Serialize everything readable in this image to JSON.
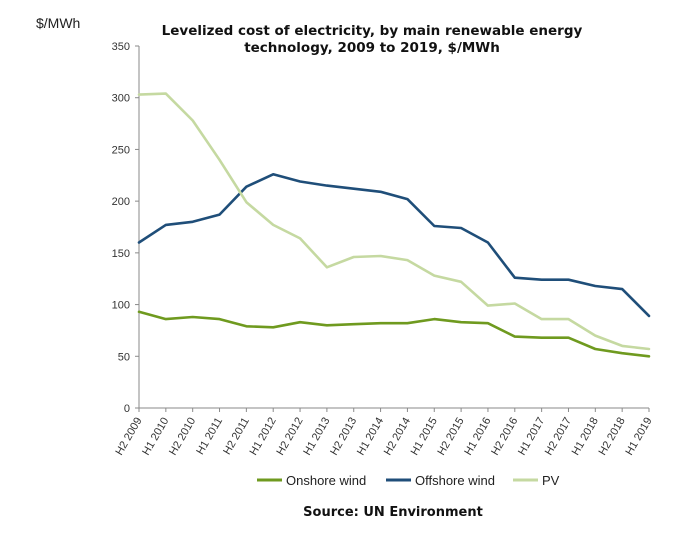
{
  "chart_data": {
    "type": "line",
    "title_line1": "Levelized cost of electricity, by main renewable energy",
    "title_line2": "technology, 2009 to 2019, $/MWh",
    "unit_label": "$/MWh",
    "source": "Source: UN Environment",
    "ylim": [
      0,
      350
    ],
    "yticks": [
      0,
      50,
      100,
      150,
      200,
      250,
      300,
      350
    ],
    "grid": false,
    "legend_position": "bottom",
    "categories": [
      "H2 2009",
      "H1 2010",
      "H2 2010",
      "H1 2011",
      "H2 2011",
      "H1 2012",
      "H2 2012",
      "H1 2013",
      "H2 2013",
      "H1 2014",
      "H2 2014",
      "H1 2015",
      "H2 2015",
      "H1 2016",
      "H2 2016",
      "H1 2017",
      "H2 2017",
      "H1 2018",
      "H2 2018",
      "H1 2019"
    ],
    "series": [
      {
        "name": "Onshore wind",
        "color": "#6f9a1f",
        "values": [
          93,
          86,
          88,
          86,
          79,
          78,
          83,
          80,
          81,
          82,
          82,
          86,
          83,
          82,
          69,
          68,
          68,
          57,
          53,
          50
        ]
      },
      {
        "name": "Offshore wind",
        "color": "#1f4e79",
        "values": [
          160,
          177,
          180,
          187,
          214,
          226,
          219,
          215,
          212,
          209,
          202,
          176,
          174,
          160,
          126,
          124,
          124,
          118,
          115,
          89
        ]
      },
      {
        "name": "PV",
        "color": "#c5d9a1",
        "values": [
          303,
          304,
          278,
          240,
          199,
          177,
          164,
          136,
          146,
          147,
          143,
          128,
          122,
          99,
          101,
          86,
          86,
          70,
          60,
          57
        ]
      }
    ]
  }
}
